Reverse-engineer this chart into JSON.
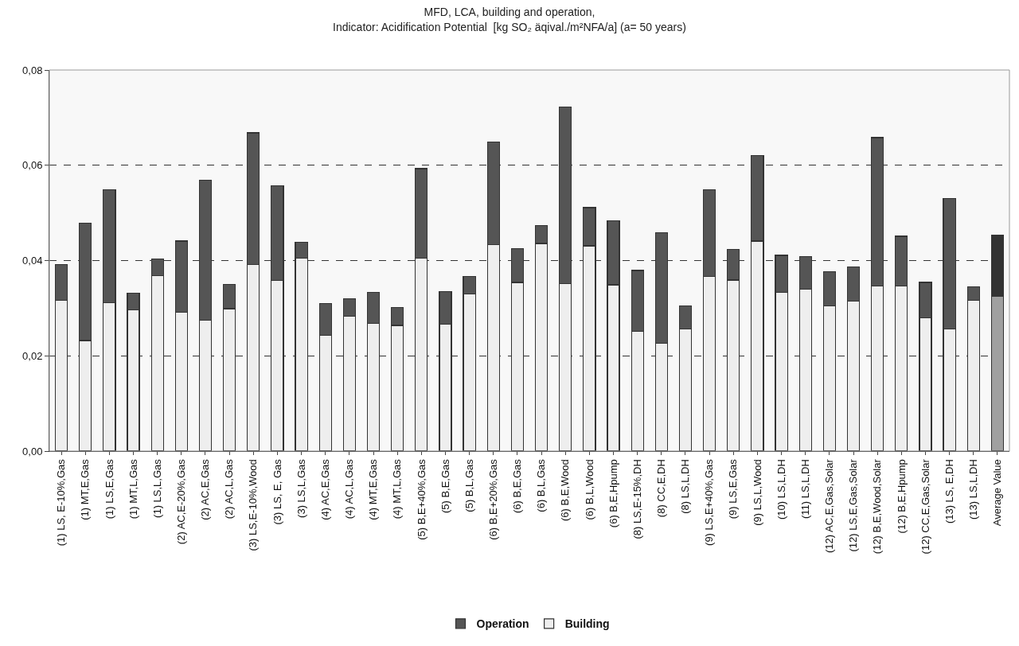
{
  "chart_data": {
    "type": "bar",
    "title": "MFD, LCA, building and operation,\nIndicator: Acidification Potential  [kg SO₂ äqival./m²NFA/a] (a= 50 years)",
    "categories": [
      "(1) LS, E-10%,Gas",
      "(1) MT,E,Gas",
      "(1) LS,E,Gas",
      "(1) MT,L,Gas",
      "(1) LS,L,Gas",
      "(2) AC,E-20%,Gas",
      "(2) AC,E,Gas",
      "(2) AC,L,Gas",
      "(3) LS,E-10%,Wood",
      "(3) LS, E, Gas",
      "(3) LS,L,Gas",
      "(4) AC,E,Gas",
      "(4) AC,L,Gas",
      "(4) MT,E,Gas",
      "(4) MT,L,Gas",
      "(5) B,E+40%,Gas",
      "(5) B,E,Gas",
      "(5) B,L,Gas",
      "(6) B,E+20%,Gas",
      "(6) B,E,Gas",
      "(6) B,L,Gas",
      "(6) B,E,Wood",
      "(6) B,L,Wood",
      "(6) B,E,Hpump",
      "(8) LS,E-15%,DH",
      "(8) CC,E,DH",
      "(8) LS,L,DH",
      "(9) LS,E+40%,Gas",
      "(9) LS,E,Gas",
      "(9) LS,L,Wood",
      "(10) LS,L,DH",
      "(11) LS,L,DH",
      "(12) AC,E,Gas,Solar",
      "(12) LS,E,Gas,Solar",
      "(12) B,E,Wood,Solar",
      "(12) B,E,Hpump",
      "(12) CC,E,Gas,Solar",
      "(13) LS, E,DH",
      "(13) LS,L,DH",
      "Average Value"
    ],
    "stacked": true,
    "series": [
      {
        "name": "Building",
        "color": "#eeeeee",
        "colors": [
          null,
          null,
          null,
          null,
          null,
          null,
          null,
          null,
          null,
          null,
          null,
          null,
          null,
          null,
          null,
          null,
          null,
          null,
          null,
          null,
          null,
          null,
          null,
          null,
          null,
          null,
          null,
          null,
          null,
          null,
          null,
          null,
          null,
          null,
          null,
          null,
          null,
          null,
          null,
          "#a0a0a0"
        ],
        "values": [
          0.0316,
          0.0232,
          0.0311,
          0.0296,
          0.0368,
          0.0291,
          0.0275,
          0.0299,
          0.0391,
          0.0358,
          0.0405,
          0.0243,
          0.0283,
          0.0268,
          0.0264,
          0.0405,
          0.0266,
          0.033,
          0.0434,
          0.0354,
          0.0436,
          0.0352,
          0.0431,
          0.0349,
          0.0252,
          0.0226,
          0.0256,
          0.0366,
          0.0359,
          0.0441,
          0.0333,
          0.034,
          0.0305,
          0.0315,
          0.0347,
          0.0346,
          0.028,
          0.0256,
          0.0317,
          0.0325
        ]
      },
      {
        "name": "Operation",
        "color": "#555555",
        "colors": [
          null,
          null,
          null,
          null,
          null,
          null,
          null,
          null,
          null,
          null,
          null,
          null,
          null,
          null,
          null,
          null,
          null,
          null,
          null,
          null,
          null,
          null,
          null,
          null,
          null,
          null,
          null,
          null,
          null,
          null,
          null,
          null,
          null,
          null,
          null,
          null,
          null,
          null,
          null,
          "#333333"
        ],
        "values": [
          0.0076,
          0.0246,
          0.0237,
          0.0036,
          0.0035,
          0.015,
          0.0294,
          0.0051,
          0.0277,
          0.0199,
          0.0034,
          0.0067,
          0.0037,
          0.0065,
          0.0038,
          0.0188,
          0.0069,
          0.0036,
          0.0215,
          0.0071,
          0.0038,
          0.037,
          0.008,
          0.0135,
          0.0127,
          0.0232,
          0.0049,
          0.0182,
          0.0064,
          0.018,
          0.0078,
          0.0068,
          0.0071,
          0.0071,
          0.0311,
          0.0105,
          0.0074,
          0.0274,
          0.0028,
          0.0128
        ]
      }
    ],
    "ylim": [
      0,
      0.08
    ],
    "yticks": [
      {
        "value": 0,
        "label": "0,00"
      },
      {
        "value": 0.02,
        "label": "0,02"
      },
      {
        "value": 0.04,
        "label": "0,04"
      },
      {
        "value": 0.06,
        "label": "0,06"
      },
      {
        "value": 0.08,
        "label": "0,08"
      }
    ],
    "grid": "y",
    "line_style": "dashed",
    "legend": "bottom"
  }
}
